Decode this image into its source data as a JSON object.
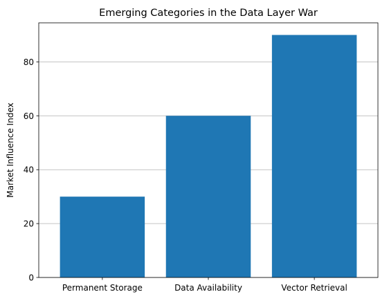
{
  "chart_data": {
    "type": "bar",
    "title": "Emerging Categories in the Data Layer War",
    "xlabel": "",
    "ylabel": "Market Influence Index",
    "categories": [
      "Permanent Storage",
      "Data Availability",
      "Vector Retrieval"
    ],
    "values": [
      30,
      60,
      90
    ],
    "ylim": [
      0,
      94.5
    ],
    "yticks": [
      0,
      20,
      40,
      60,
      80
    ],
    "grid": "y",
    "legend": "none",
    "colors": {
      "bar": "#1f77b4",
      "grid": "#b0b0b0",
      "axis": "#000000"
    }
  }
}
